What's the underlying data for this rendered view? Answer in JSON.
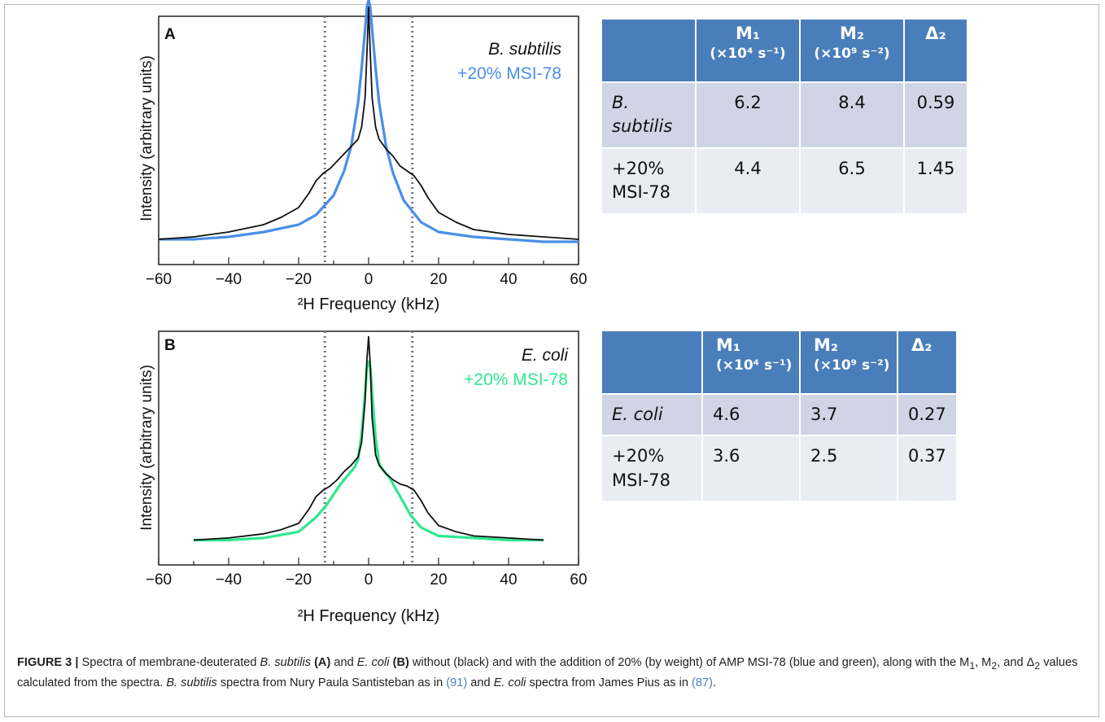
{
  "colors": {
    "black_series": "#111111",
    "blue_series": "#4a8fe7",
    "green_series": "#2ee88f",
    "table_header": "#4a7ebb",
    "row_dark": "#cfd5e5",
    "row_light": "#e9ecf3",
    "dotted": "#777777"
  },
  "panelA": {
    "label": "A",
    "legend_black": "B. subtilis",
    "legend_color": "+20% MSI-78",
    "chart_data": {
      "type": "line",
      "xlabel": "²H Frequency (kHz)",
      "ylabel": "Intensity (arbitrary units)",
      "xlim": [
        -60,
        60
      ],
      "xticks": [
        -60,
        -40,
        -20,
        0,
        20,
        40,
        60
      ],
      "xtick_labels": [
        "−60",
        "−40",
        "−20",
        "0",
        "20",
        "40",
        "60"
      ],
      "dotted_lines_x": [
        -12.5,
        12.5
      ],
      "series": [
        {
          "name": "B. subtilis",
          "color": "black",
          "x": [
            -60,
            -50,
            -40,
            -30,
            -25,
            -20,
            -17,
            -15,
            -13,
            -11,
            -9,
            -7,
            -5,
            -3,
            -2,
            -1,
            -0.5,
            0,
            0.5,
            1,
            2,
            3,
            5,
            7,
            9,
            11,
            13,
            15,
            17,
            20,
            25,
            30,
            40,
            50,
            60
          ],
          "y": [
            0.02,
            0.03,
            0.05,
            0.08,
            0.11,
            0.15,
            0.21,
            0.26,
            0.29,
            0.31,
            0.34,
            0.37,
            0.4,
            0.43,
            0.48,
            0.6,
            0.78,
            0.97,
            0.78,
            0.6,
            0.48,
            0.43,
            0.39,
            0.36,
            0.32,
            0.3,
            0.28,
            0.24,
            0.19,
            0.13,
            0.09,
            0.06,
            0.04,
            0.03,
            0.02
          ]
        },
        {
          "name": "+20% MSI-78",
          "color": "blue",
          "x": [
            -60,
            -50,
            -40,
            -30,
            -20,
            -15,
            -10,
            -7,
            -5,
            -3,
            -2,
            -1,
            -0.5,
            0,
            0.5,
            1,
            2,
            3,
            5,
            7,
            10,
            15,
            20,
            30,
            40,
            50,
            60
          ],
          "y": [
            0.02,
            0.02,
            0.03,
            0.05,
            0.08,
            0.12,
            0.2,
            0.3,
            0.4,
            0.58,
            0.72,
            0.88,
            0.97,
            1.0,
            0.97,
            0.88,
            0.72,
            0.58,
            0.4,
            0.29,
            0.18,
            0.09,
            0.05,
            0.03,
            0.02,
            0.01,
            0.01
          ]
        }
      ]
    }
  },
  "panelB": {
    "label": "B",
    "legend_black": "E. coli",
    "legend_color": "+20% MSI-78",
    "chart_data": {
      "type": "line",
      "xlabel": "²H Frequency (kHz)",
      "ylabel": "Intensity (arbitrary units)",
      "xlim": [
        -60,
        60
      ],
      "xticks": [
        -60,
        -40,
        -20,
        0,
        20,
        40,
        60
      ],
      "xtick_labels": [
        "−60",
        "−40",
        "−20",
        "0",
        "20",
        "40",
        "60"
      ],
      "dotted_lines_x": [
        -12.5,
        12.5
      ],
      "series": [
        {
          "name": "E. coli",
          "color": "black",
          "x": [
            -50,
            -40,
            -30,
            -25,
            -20,
            -17,
            -15,
            -13,
            -11,
            -9,
            -7,
            -5,
            -3,
            -2,
            -1,
            -0.5,
            0,
            0.5,
            1,
            2,
            3,
            5,
            7,
            9,
            11,
            13,
            15,
            17,
            20,
            25,
            30,
            40,
            50
          ],
          "y": [
            0.01,
            0.02,
            0.04,
            0.06,
            0.09,
            0.16,
            0.22,
            0.25,
            0.27,
            0.3,
            0.34,
            0.37,
            0.41,
            0.48,
            0.68,
            0.88,
            0.99,
            0.85,
            0.6,
            0.42,
            0.37,
            0.33,
            0.3,
            0.28,
            0.27,
            0.25,
            0.2,
            0.14,
            0.08,
            0.05,
            0.03,
            0.02,
            0.01
          ]
        },
        {
          "name": "+20% MSI-78",
          "color": "green",
          "x": [
            -50,
            -40,
            -30,
            -20,
            -15,
            -12,
            -10,
            -8,
            -6,
            -4,
            -3,
            -2,
            -1,
            -0.5,
            0,
            0.5,
            1,
            2,
            3,
            4,
            6,
            8,
            10,
            12,
            15,
            20,
            30,
            40,
            50
          ],
          "y": [
            0.01,
            0.01,
            0.02,
            0.05,
            0.12,
            0.18,
            0.23,
            0.28,
            0.32,
            0.36,
            0.4,
            0.52,
            0.72,
            0.84,
            0.87,
            0.84,
            0.72,
            0.5,
            0.38,
            0.35,
            0.31,
            0.25,
            0.19,
            0.13,
            0.07,
            0.03,
            0.02,
            0.01,
            0.01
          ]
        }
      ]
    }
  },
  "tableA": {
    "headers": {
      "m1": "M₁",
      "m1_unit": "(×10⁴ s⁻¹)",
      "m2": "M₂",
      "m2_unit": "(×10⁹ s⁻²)",
      "d2": "Δ₂"
    },
    "rows": [
      {
        "label": "B. subtilis",
        "m1": "6.2",
        "m2": "8.4",
        "d2": "0.59"
      },
      {
        "label": "+20% MSI-78",
        "m1": "4.4",
        "m2": "6.5",
        "d2": "1.45"
      }
    ]
  },
  "tableB": {
    "headers": {
      "m1": "M₁",
      "m1_unit": "(×10⁴ s⁻¹)",
      "m2": "M₂",
      "m2_unit": "(×10⁹ s⁻²)",
      "d2": "Δ₂"
    },
    "rows": [
      {
        "label": "E. coli",
        "m1": "4.6",
        "m2": "3.7",
        "d2": "0.27"
      },
      {
        "label": "+20% MSI-78",
        "m1": "3.6",
        "m2": "2.5",
        "d2": "0.37"
      }
    ]
  },
  "caption": {
    "figure_label": "FIGURE 3 |",
    "t1": " Spectra of membrane-deuterated ",
    "bsub": "B. subtilis",
    "a": "(A)",
    "t2": " and ",
    "ecoli": "E. coli",
    "b": "(B)",
    "t3": " without (black) and with the addition of 20% (by weight) of AMP MSI-78 (blue and green), along with the M",
    "s1": "1",
    "t4": ", M",
    "s2": "2",
    "t5": ", and Δ",
    "s3": "2",
    "t6": " values calculated from the spectra. ",
    "bsub2": "B. subtilis",
    "t7": " spectra from Nury Paula Santisteban as in ",
    "ref1": "(91)",
    "t8": " and ",
    "ecoli2": "E. coli",
    "t9": " spectra from James Pius as in ",
    "ref2": "(87)",
    "t10": "."
  }
}
